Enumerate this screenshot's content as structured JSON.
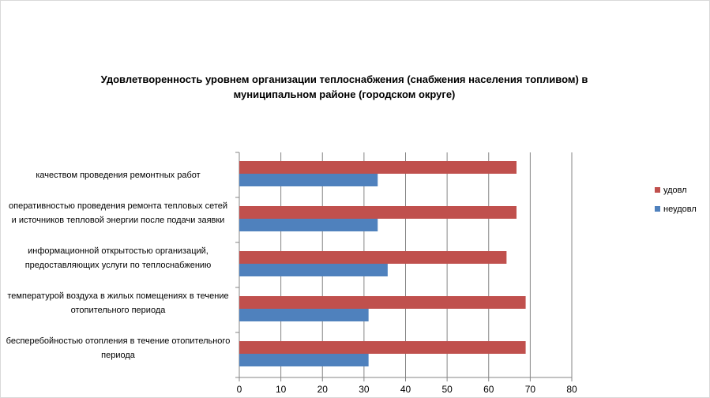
{
  "chart_data": {
    "type": "bar",
    "orientation": "horizontal",
    "title": "Удовлетворенность уровнем организации теплоснабжения (снабжения населения топливом) в муниципальном районе (городском округе)",
    "categories": [
      "бесперебойностью  отопления в течение отопительного периода",
      "температурой воздуха в жилых помещениях  в течение  отопительного периода",
      "информационной открытостью организаций, предоставляющих услуги по теплоснабжению",
      "оперативностью проведения ремонта тепловых сетей и источников тепловой энергии после подачи заявки",
      "качеством проведения  ремонтных работ"
    ],
    "series": [
      {
        "name": "неудовл",
        "color": "#4f81bd",
        "values": [
          31.1,
          31.1,
          35.7,
          33.3,
          33.3
        ]
      },
      {
        "name": "удовл",
        "color": "#c0504d",
        "values": [
          68.9,
          68.9,
          64.3,
          66.7,
          66.7
        ]
      }
    ],
    "xlim": [
      0,
      80
    ],
    "xticks": [
      "0",
      "10",
      "20",
      "30",
      "40",
      "50",
      "60",
      "70",
      "80"
    ],
    "grid": true,
    "legend": "right"
  }
}
